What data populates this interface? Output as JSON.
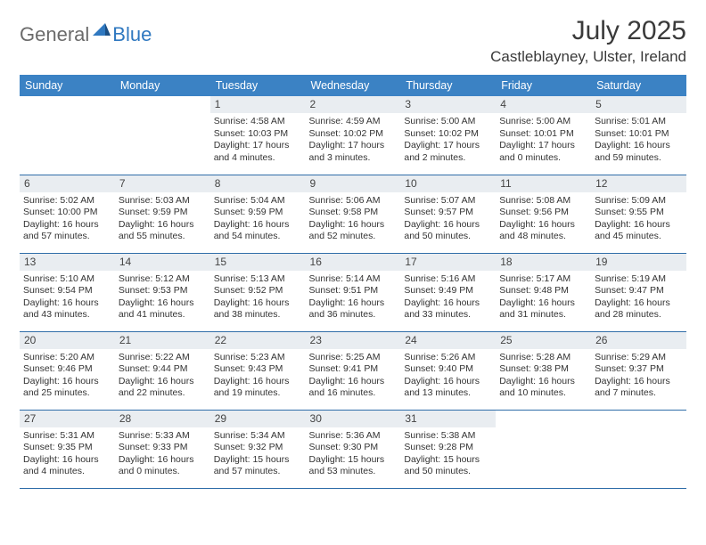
{
  "brand": {
    "name_a": "General",
    "name_b": "Blue"
  },
  "title": "July 2025",
  "location": "Castleblayney, Ulster, Ireland",
  "colors": {
    "header_bg": "#3b82c4",
    "header_text": "#ffffff",
    "daynum_bg": "#e9edf1",
    "week_border": "#2f6da8",
    "logo_gray": "#6b6b6b",
    "logo_blue": "#2f78c0"
  },
  "columns": [
    "Sunday",
    "Monday",
    "Tuesday",
    "Wednesday",
    "Thursday",
    "Friday",
    "Saturday"
  ],
  "weeks": [
    [
      null,
      null,
      {
        "n": "1",
        "sr": "Sunrise: 4:58 AM",
        "ss": "Sunset: 10:03 PM",
        "dl": "Daylight: 17 hours and 4 minutes."
      },
      {
        "n": "2",
        "sr": "Sunrise: 4:59 AM",
        "ss": "Sunset: 10:02 PM",
        "dl": "Daylight: 17 hours and 3 minutes."
      },
      {
        "n": "3",
        "sr": "Sunrise: 5:00 AM",
        "ss": "Sunset: 10:02 PM",
        "dl": "Daylight: 17 hours and 2 minutes."
      },
      {
        "n": "4",
        "sr": "Sunrise: 5:00 AM",
        "ss": "Sunset: 10:01 PM",
        "dl": "Daylight: 17 hours and 0 minutes."
      },
      {
        "n": "5",
        "sr": "Sunrise: 5:01 AM",
        "ss": "Sunset: 10:01 PM",
        "dl": "Daylight: 16 hours and 59 minutes."
      }
    ],
    [
      {
        "n": "6",
        "sr": "Sunrise: 5:02 AM",
        "ss": "Sunset: 10:00 PM",
        "dl": "Daylight: 16 hours and 57 minutes."
      },
      {
        "n": "7",
        "sr": "Sunrise: 5:03 AM",
        "ss": "Sunset: 9:59 PM",
        "dl": "Daylight: 16 hours and 55 minutes."
      },
      {
        "n": "8",
        "sr": "Sunrise: 5:04 AM",
        "ss": "Sunset: 9:59 PM",
        "dl": "Daylight: 16 hours and 54 minutes."
      },
      {
        "n": "9",
        "sr": "Sunrise: 5:06 AM",
        "ss": "Sunset: 9:58 PM",
        "dl": "Daylight: 16 hours and 52 minutes."
      },
      {
        "n": "10",
        "sr": "Sunrise: 5:07 AM",
        "ss": "Sunset: 9:57 PM",
        "dl": "Daylight: 16 hours and 50 minutes."
      },
      {
        "n": "11",
        "sr": "Sunrise: 5:08 AM",
        "ss": "Sunset: 9:56 PM",
        "dl": "Daylight: 16 hours and 48 minutes."
      },
      {
        "n": "12",
        "sr": "Sunrise: 5:09 AM",
        "ss": "Sunset: 9:55 PM",
        "dl": "Daylight: 16 hours and 45 minutes."
      }
    ],
    [
      {
        "n": "13",
        "sr": "Sunrise: 5:10 AM",
        "ss": "Sunset: 9:54 PM",
        "dl": "Daylight: 16 hours and 43 minutes."
      },
      {
        "n": "14",
        "sr": "Sunrise: 5:12 AM",
        "ss": "Sunset: 9:53 PM",
        "dl": "Daylight: 16 hours and 41 minutes."
      },
      {
        "n": "15",
        "sr": "Sunrise: 5:13 AM",
        "ss": "Sunset: 9:52 PM",
        "dl": "Daylight: 16 hours and 38 minutes."
      },
      {
        "n": "16",
        "sr": "Sunrise: 5:14 AM",
        "ss": "Sunset: 9:51 PM",
        "dl": "Daylight: 16 hours and 36 minutes."
      },
      {
        "n": "17",
        "sr": "Sunrise: 5:16 AM",
        "ss": "Sunset: 9:49 PM",
        "dl": "Daylight: 16 hours and 33 minutes."
      },
      {
        "n": "18",
        "sr": "Sunrise: 5:17 AM",
        "ss": "Sunset: 9:48 PM",
        "dl": "Daylight: 16 hours and 31 minutes."
      },
      {
        "n": "19",
        "sr": "Sunrise: 5:19 AM",
        "ss": "Sunset: 9:47 PM",
        "dl": "Daylight: 16 hours and 28 minutes."
      }
    ],
    [
      {
        "n": "20",
        "sr": "Sunrise: 5:20 AM",
        "ss": "Sunset: 9:46 PM",
        "dl": "Daylight: 16 hours and 25 minutes."
      },
      {
        "n": "21",
        "sr": "Sunrise: 5:22 AM",
        "ss": "Sunset: 9:44 PM",
        "dl": "Daylight: 16 hours and 22 minutes."
      },
      {
        "n": "22",
        "sr": "Sunrise: 5:23 AM",
        "ss": "Sunset: 9:43 PM",
        "dl": "Daylight: 16 hours and 19 minutes."
      },
      {
        "n": "23",
        "sr": "Sunrise: 5:25 AM",
        "ss": "Sunset: 9:41 PM",
        "dl": "Daylight: 16 hours and 16 minutes."
      },
      {
        "n": "24",
        "sr": "Sunrise: 5:26 AM",
        "ss": "Sunset: 9:40 PM",
        "dl": "Daylight: 16 hours and 13 minutes."
      },
      {
        "n": "25",
        "sr": "Sunrise: 5:28 AM",
        "ss": "Sunset: 9:38 PM",
        "dl": "Daylight: 16 hours and 10 minutes."
      },
      {
        "n": "26",
        "sr": "Sunrise: 5:29 AM",
        "ss": "Sunset: 9:37 PM",
        "dl": "Daylight: 16 hours and 7 minutes."
      }
    ],
    [
      {
        "n": "27",
        "sr": "Sunrise: 5:31 AM",
        "ss": "Sunset: 9:35 PM",
        "dl": "Daylight: 16 hours and 4 minutes."
      },
      {
        "n": "28",
        "sr": "Sunrise: 5:33 AM",
        "ss": "Sunset: 9:33 PM",
        "dl": "Daylight: 16 hours and 0 minutes."
      },
      {
        "n": "29",
        "sr": "Sunrise: 5:34 AM",
        "ss": "Sunset: 9:32 PM",
        "dl": "Daylight: 15 hours and 57 minutes."
      },
      {
        "n": "30",
        "sr": "Sunrise: 5:36 AM",
        "ss": "Sunset: 9:30 PM",
        "dl": "Daylight: 15 hours and 53 minutes."
      },
      {
        "n": "31",
        "sr": "Sunrise: 5:38 AM",
        "ss": "Sunset: 9:28 PM",
        "dl": "Daylight: 15 hours and 50 minutes."
      },
      null,
      null
    ]
  ]
}
